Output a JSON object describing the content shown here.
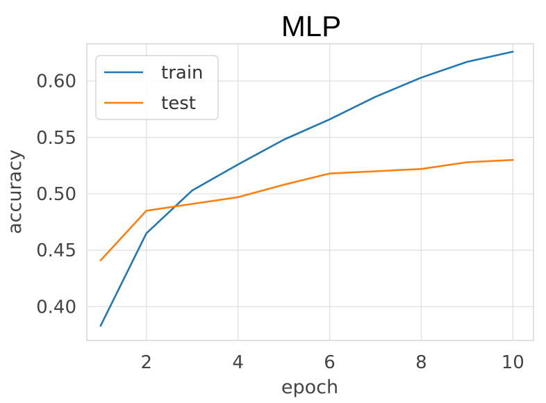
{
  "chart_data": {
    "type": "line",
    "title": "MLP",
    "xlabel": "epoch",
    "ylabel": "accuracy",
    "xlim": [
      0.7,
      10.45
    ],
    "ylim": [
      0.37,
      0.633
    ],
    "xticks": [
      2,
      4,
      6,
      8,
      10
    ],
    "yticks": [
      0.4,
      0.45,
      0.5,
      0.55,
      0.6
    ],
    "ytick_labels": [
      "0.40",
      "0.45",
      "0.50",
      "0.55",
      "0.60"
    ],
    "grid": true,
    "legend_position": "top-left",
    "x": [
      1,
      2,
      3,
      4,
      5,
      6,
      7,
      8,
      9,
      10
    ],
    "series": [
      {
        "name": "train",
        "color": "#1f77b4",
        "values": [
          0.383,
          0.465,
          0.503,
          0.526,
          0.548,
          0.566,
          0.586,
          0.603,
          0.617,
          0.626
        ]
      },
      {
        "name": "test",
        "color": "#ff7f0e",
        "values": [
          0.441,
          0.485,
          0.491,
          0.497,
          0.508,
          0.518,
          0.52,
          0.522,
          0.528,
          0.53
        ]
      }
    ]
  }
}
